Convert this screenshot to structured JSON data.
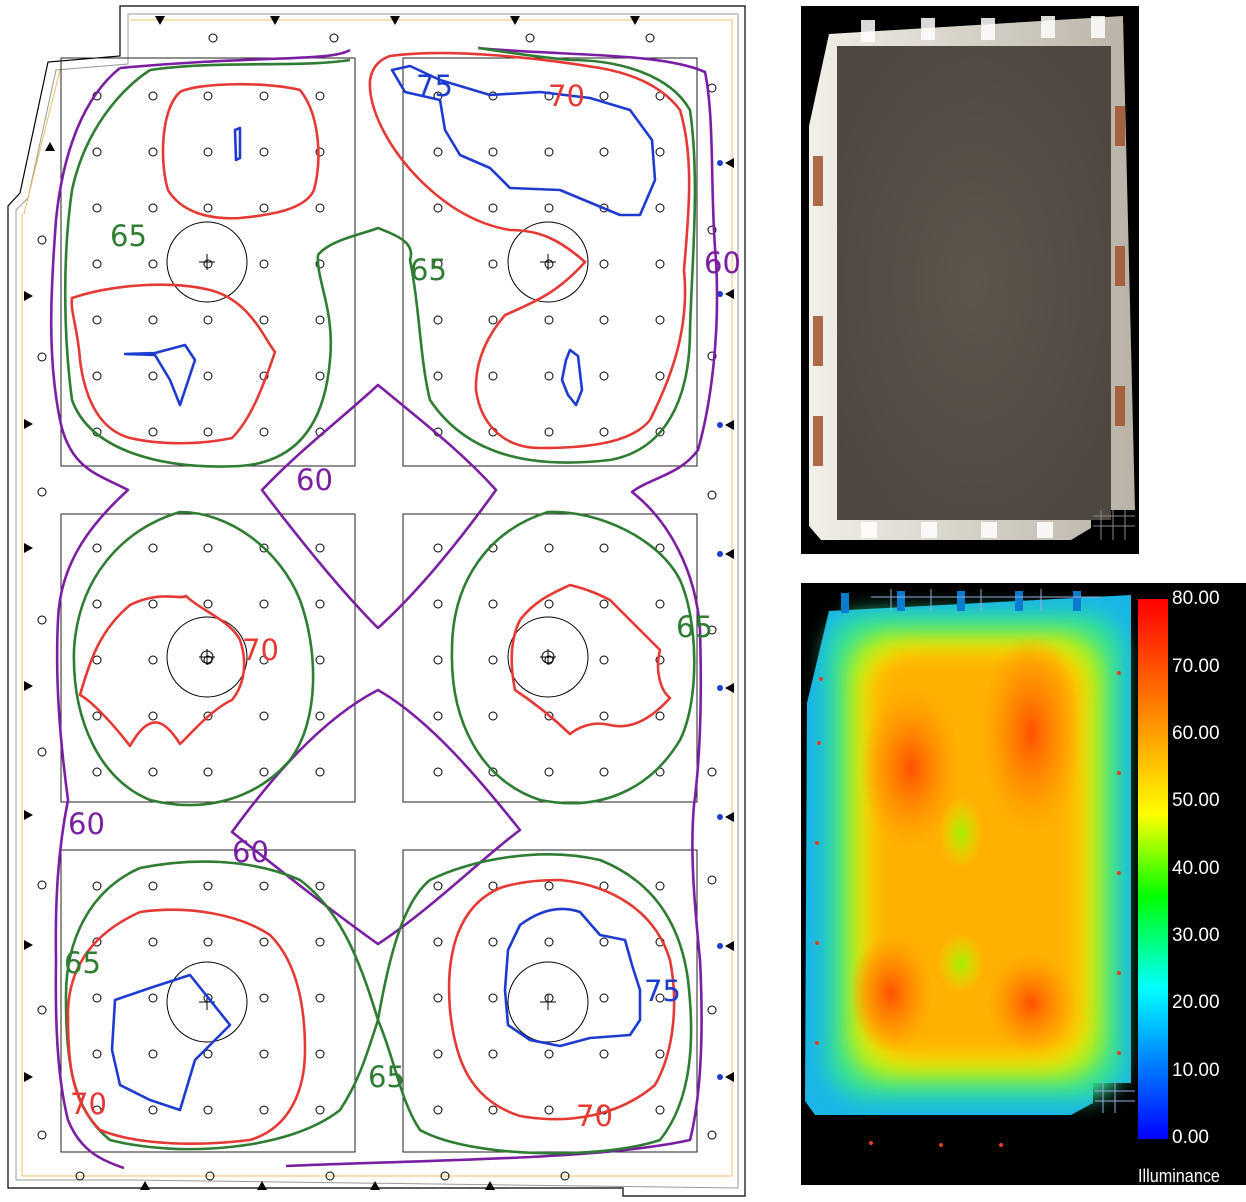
{
  "contour_plan": {
    "iso_colors": {
      "60": "#7b1fa2",
      "65": "#2e7d32",
      "70": "#e53935",
      "75": "#1e3bd0"
    },
    "labels": [
      "60",
      "60",
      "60",
      "60",
      "65",
      "65",
      "65",
      "65",
      "65",
      "70",
      "70",
      "70",
      "70",
      "75",
      "75"
    ]
  },
  "render_3d": {
    "floor_color": "#5a524a",
    "wall_color": "#d8d4cc"
  },
  "false_color": {
    "legend_title": "Illuminance",
    "scale_labels": [
      "80.00",
      "70.00",
      "60.00",
      "50.00",
      "40.00",
      "30.00",
      "20.00",
      "10.00",
      "0.00"
    ],
    "colors": [
      "#ff0000",
      "#ff7f00",
      "#ffff00",
      "#00ff00",
      "#00ffff",
      "#0000ff"
    ]
  }
}
